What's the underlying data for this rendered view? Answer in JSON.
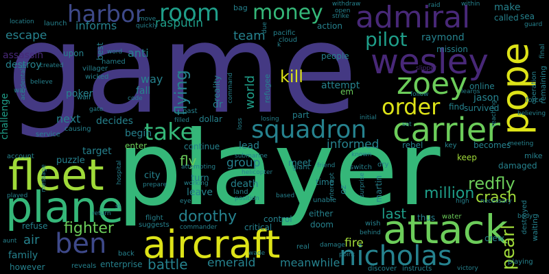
{
  "background": "#000000",
  "palette": {
    "green": "#35b779",
    "indigo": "#443983",
    "teal": "#26828e",
    "blue": "#3e4989",
    "purple": "#482878",
    "lime": "#a0da39",
    "yellow": "#dde318",
    "seafoam": "#1f9e89",
    "mint": "#6ccd5a",
    "violet": "#440154"
  },
  "words": [
    {
      "text": "game",
      "color": "#443983"
    },
    {
      "text": "player",
      "color": "#35b779"
    },
    {
      "text": "aircraft",
      "color": "#dde318"
    },
    {
      "text": "attack",
      "color": "#6ccd5a"
    },
    {
      "text": "fleet",
      "color": "#a0da39"
    },
    {
      "text": "plane",
      "color": "#35b779"
    },
    {
      "text": "carrier",
      "color": "#6ccd5a"
    },
    {
      "text": "squadron",
      "color": "#26828e"
    },
    {
      "text": "pope",
      "color": "#dde318"
    },
    {
      "text": "wesley",
      "color": "#482878"
    },
    {
      "text": "admiral",
      "color": "#482878"
    },
    {
      "text": "zoey",
      "color": "#6ccd5a"
    },
    {
      "text": "nicholas",
      "color": "#26828e"
    },
    {
      "text": "ben",
      "color": "#3e4989"
    },
    {
      "text": "take",
      "color": "#35b779"
    },
    {
      "text": "order",
      "color": "#dde318"
    },
    {
      "text": "room",
      "color": "#1f9e89"
    },
    {
      "text": "harbor",
      "color": "#3e4989"
    },
    {
      "text": "money",
      "color": "#35b779"
    },
    {
      "text": "pilot",
      "color": "#1f9e89"
    },
    {
      "text": "kill",
      "color": "#dde318"
    },
    {
      "text": "redfly",
      "color": "#6ccd5a"
    },
    {
      "text": "pearl",
      "color": "#a0da39"
    },
    {
      "text": "crash",
      "color": "#a0da39"
    },
    {
      "text": "fighter",
      "color": "#6ccd5a"
    },
    {
      "text": "million",
      "color": "#1f9e89"
    },
    {
      "text": "battle",
      "color": "#26828e"
    },
    {
      "text": "emerald",
      "color": "#26828e"
    },
    {
      "text": "dorothy",
      "color": "#26828e"
    },
    {
      "text": "air",
      "color": "#26828e"
    },
    {
      "text": "flying",
      "color": "#26828e"
    },
    {
      "text": "world",
      "color": "#1f9e89"
    },
    {
      "text": "informed",
      "color": "#26828e"
    },
    {
      "text": "fly",
      "color": "#6ccd5a"
    },
    {
      "text": "group",
      "color": "#26828e"
    },
    {
      "text": "last",
      "color": "#1f9e89"
    },
    {
      "text": "fire",
      "color": "#a0da39"
    },
    {
      "text": "meanwhile",
      "color": "#26828e"
    },
    {
      "text": "team",
      "color": "#26828e"
    },
    {
      "text": "rasputin",
      "color": "#1f9e89"
    },
    {
      "text": "informs",
      "color": "#26828e"
    },
    {
      "text": "escape",
      "color": "#26828e"
    },
    {
      "text": "destroy",
      "color": "#26828e"
    },
    {
      "text": "assassin",
      "color": "#482878"
    },
    {
      "text": "poker",
      "color": "#26828e"
    },
    {
      "text": "anti",
      "color": "#26828e"
    },
    {
      "text": "way",
      "color": "#26828e"
    },
    {
      "text": "fall",
      "color": "#26828e"
    },
    {
      "text": "next",
      "color": "#26828e"
    },
    {
      "text": "decides",
      "color": "#26828e"
    },
    {
      "text": "begin",
      "color": "#26828e"
    },
    {
      "text": "target",
      "color": "#26828e"
    },
    {
      "text": "puzzle",
      "color": "#26828e"
    },
    {
      "text": "family",
      "color": "#26828e"
    },
    {
      "text": "challenge",
      "color": "#1f9e89"
    },
    {
      "text": "leave",
      "color": "#26828e"
    },
    {
      "text": "turn",
      "color": "#26828e"
    },
    {
      "text": "city",
      "color": "#26828e"
    },
    {
      "text": "death",
      "color": "#26828e"
    },
    {
      "text": "lead",
      "color": "#26828e"
    },
    {
      "text": "meet",
      "color": "#26828e"
    },
    {
      "text": "continue",
      "color": "#26828e"
    },
    {
      "text": "enter",
      "color": "#6ccd5a"
    },
    {
      "text": "make",
      "color": "#26828e"
    },
    {
      "text": "called",
      "color": "#26828e"
    },
    {
      "text": "sea",
      "color": "#26828e"
    },
    {
      "text": "raymond",
      "color": "#26828e"
    },
    {
      "text": "mission",
      "color": "#26828e"
    },
    {
      "text": "people",
      "color": "#26828e"
    },
    {
      "text": "attempt",
      "color": "#26828e"
    },
    {
      "text": "jason",
      "color": "#26828e"
    },
    {
      "text": "online",
      "color": "#26828e"
    },
    {
      "text": "find",
      "color": "#26828e"
    },
    {
      "text": "survived",
      "color": "#26828e"
    },
    {
      "text": "rebel",
      "color": "#26828e"
    },
    {
      "text": "becomes",
      "color": "#26828e"
    },
    {
      "text": "keep",
      "color": "#a0da39"
    },
    {
      "text": "damaged",
      "color": "#26828e"
    },
    {
      "text": "mike",
      "color": "#26828e"
    },
    {
      "text": "martin",
      "color": "#26828e"
    },
    {
      "text": "thus",
      "color": "#26828e"
    },
    {
      "text": "water",
      "color": "#6ccd5a"
    },
    {
      "text": "crew",
      "color": "#26828e"
    },
    {
      "text": "refugee",
      "color": "#26828e"
    },
    {
      "text": "dollar",
      "color": "#26828e"
    },
    {
      "text": "dr",
      "color": "#26828e"
    },
    {
      "text": "reality",
      "color": "#26828e"
    },
    {
      "text": "either",
      "color": "#26828e"
    },
    {
      "text": "control",
      "color": "#26828e"
    },
    {
      "text": "doom",
      "color": "#26828e"
    },
    {
      "text": "critical",
      "color": "#26828e"
    },
    {
      "text": "remaining",
      "color": "#26828e"
    },
    {
      "text": "final",
      "color": "#26828e"
    },
    {
      "text": "operation",
      "color": "#26828e"
    },
    {
      "text": "waiting",
      "color": "#26828e"
    },
    {
      "text": "destroyed",
      "color": "#26828e"
    },
    {
      "text": "action",
      "color": "#26828e"
    },
    {
      "text": "pacific",
      "color": "#26828e"
    },
    {
      "text": "cloud",
      "color": "#26828e"
    },
    {
      "text": "bag",
      "color": "#26828e"
    },
    {
      "text": "withdraw",
      "color": "#26828e"
    },
    {
      "text": "open",
      "color": "#26828e"
    },
    {
      "text": "raid",
      "color": "#26828e"
    },
    {
      "text": "within",
      "color": "#26828e"
    },
    {
      "text": "guard",
      "color": "#26828e"
    },
    {
      "text": "move",
      "color": "#26828e"
    },
    {
      "text": "quickly",
      "color": "#26828e"
    },
    {
      "text": "launch",
      "color": "#26828e"
    },
    {
      "text": "location",
      "color": "#26828e"
    },
    {
      "text": "upon",
      "color": "#26828e"
    },
    {
      "text": "best",
      "color": "#26828e"
    },
    {
      "text": "word",
      "color": "#26828e"
    },
    {
      "text": "named",
      "color": "#26828e"
    },
    {
      "text": "villager",
      "color": "#26828e"
    },
    {
      "text": "wicked",
      "color": "#26828e"
    },
    {
      "text": "believe",
      "color": "#26828e"
    },
    {
      "text": "war",
      "color": "#26828e"
    },
    {
      "text": "wall",
      "color": "#26828e"
    },
    {
      "text": "code",
      "color": "#26828e"
    },
    {
      "text": "created",
      "color": "#26828e"
    },
    {
      "text": "accidentally",
      "color": "#26828e"
    },
    {
      "text": "service",
      "color": "#26828e"
    },
    {
      "text": "causing",
      "color": "#26828e"
    },
    {
      "text": "gate",
      "color": "#26828e"
    },
    {
      "text": "past",
      "color": "#26828e"
    },
    {
      "text": "filled",
      "color": "#26828e"
    },
    {
      "text": "loss",
      "color": "#26828e"
    },
    {
      "text": "command",
      "color": "#26828e"
    },
    {
      "text": "em",
      "color": "#6ccd5a"
    },
    {
      "text": "k",
      "color": "#26828e"
    },
    {
      "text": "due",
      "color": "#26828e"
    },
    {
      "text": "strike",
      "color": "#26828e"
    },
    {
      "text": "slipper",
      "color": "#482878"
    },
    {
      "text": "learns",
      "color": "#26828e"
    },
    {
      "text": "force",
      "color": "#26828e"
    },
    {
      "text": "believing",
      "color": "#26828e"
    },
    {
      "text": "follow",
      "color": "#26828e"
    },
    {
      "text": "reaching",
      "color": "#26828e"
    },
    {
      "text": "set",
      "color": "#26828e"
    },
    {
      "text": "initial",
      "color": "#26828e"
    },
    {
      "text": "losing",
      "color": "#26828e"
    },
    {
      "text": "part",
      "color": "#26828e"
    },
    {
      "text": "key",
      "color": "#26828e"
    },
    {
      "text": "meeting",
      "color": "#26828e"
    },
    {
      "text": "switch",
      "color": "#26828e"
    },
    {
      "text": "dry",
      "color": "#26828e"
    },
    {
      "text": "known",
      "color": "#26828e"
    },
    {
      "text": "giant",
      "color": "#26828e"
    },
    {
      "text": "submarine",
      "color": "#26828e"
    },
    {
      "text": "helicopter",
      "color": "#26828e"
    },
    {
      "text": "friend",
      "color": "#26828e"
    },
    {
      "text": "surprise",
      "color": "#26828e"
    },
    {
      "text": "time",
      "color": "#26828e"
    },
    {
      "text": "oz",
      "color": "#26828e"
    },
    {
      "text": "intercept",
      "color": "#26828e"
    },
    {
      "text": "unable",
      "color": "#26828e"
    },
    {
      "text": "high",
      "color": "#26828e"
    },
    {
      "text": "necessary",
      "color": "#26828e"
    },
    {
      "text": "body",
      "color": "#26828e"
    },
    {
      "text": "land",
      "color": "#26828e"
    },
    {
      "text": "position",
      "color": "#26828e"
    },
    {
      "text": "based",
      "color": "#26828e"
    },
    {
      "text": "real",
      "color": "#26828e"
    },
    {
      "text": "damage",
      "color": "#26828e"
    },
    {
      "text": "behind",
      "color": "#26828e"
    },
    {
      "text": "wish",
      "color": "#26828e"
    },
    {
      "text": "point",
      "color": "#26828e"
    },
    {
      "text": "wade",
      "color": "#26828e"
    },
    {
      "text": "instructs",
      "color": "#26828e"
    },
    {
      "text": "discover",
      "color": "#26828e"
    },
    {
      "text": "playing",
      "color": "#26828e"
    },
    {
      "text": "victory",
      "color": "#26828e"
    },
    {
      "text": "reveals",
      "color": "#26828e"
    },
    {
      "text": "enterprise",
      "color": "#26828e"
    },
    {
      "text": "back",
      "color": "#26828e"
    },
    {
      "text": "however",
      "color": "#26828e"
    },
    {
      "text": "aunt",
      "color": "#26828e"
    },
    {
      "text": "refuse",
      "color": "#26828e"
    },
    {
      "text": "played",
      "color": "#26828e"
    },
    {
      "text": "account",
      "color": "#26828e"
    },
    {
      "text": "message",
      "color": "#26828e"
    },
    {
      "text": "hospital",
      "color": "#26828e"
    },
    {
      "text": "st",
      "color": "#26828e"
    },
    {
      "text": "return",
      "color": "#26828e"
    },
    {
      "text": "flight",
      "color": "#26828e"
    },
    {
      "text": "prepare",
      "color": "#26828e"
    },
    {
      "text": "suggests",
      "color": "#26828e"
    },
    {
      "text": "commander",
      "color": "#26828e"
    },
    {
      "text": "working",
      "color": "#26828e"
    },
    {
      "text": "eye",
      "color": "#26828e"
    },
    {
      "text": "attempting",
      "color": "#26828e"
    }
  ]
}
